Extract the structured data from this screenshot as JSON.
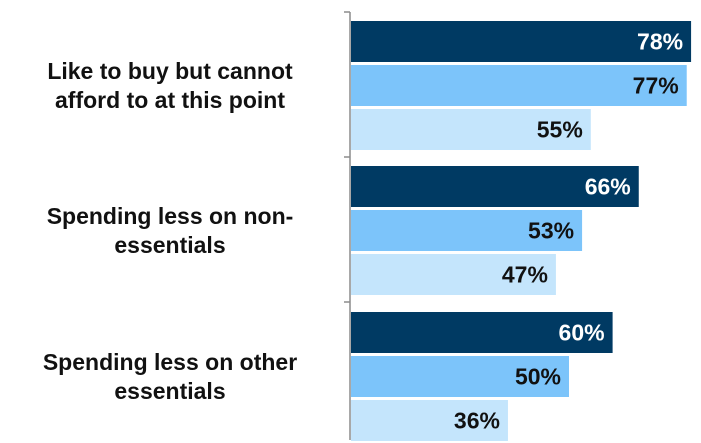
{
  "chart_data": {
    "type": "bar",
    "orientation": "horizontal",
    "categories": [
      "Like to buy but cannot afford to at this point",
      "Spending less on non-essentials",
      "Spending less on other essentials"
    ],
    "category_label_lines": [
      [
        "Like to buy but cannot",
        "afford to at this point"
      ],
      [
        "Spending less on non-",
        "essentials"
      ],
      [
        "Spending less on other",
        "essentials"
      ]
    ],
    "series": [
      {
        "values": [
          78,
          66,
          60
        ],
        "labels": [
          "78%",
          "66%",
          "60%"
        ],
        "color": "#003a63",
        "label_color": "#ffffff"
      },
      {
        "values": [
          77,
          53,
          50
        ],
        "labels": [
          "77%",
          "53%",
          "50%"
        ],
        "color": "#7cc4fa",
        "label_color": "#111111"
      },
      {
        "values": [
          55,
          47,
          36
        ],
        "labels": [
          "55%",
          "47%",
          "36%"
        ],
        "color": "#c4e5fc",
        "label_color": "#111111"
      }
    ],
    "value_suffix": "%",
    "xlim": [
      0,
      100
    ],
    "grid": false,
    "legend": "none",
    "axis_color": "#8c8c8c"
  }
}
